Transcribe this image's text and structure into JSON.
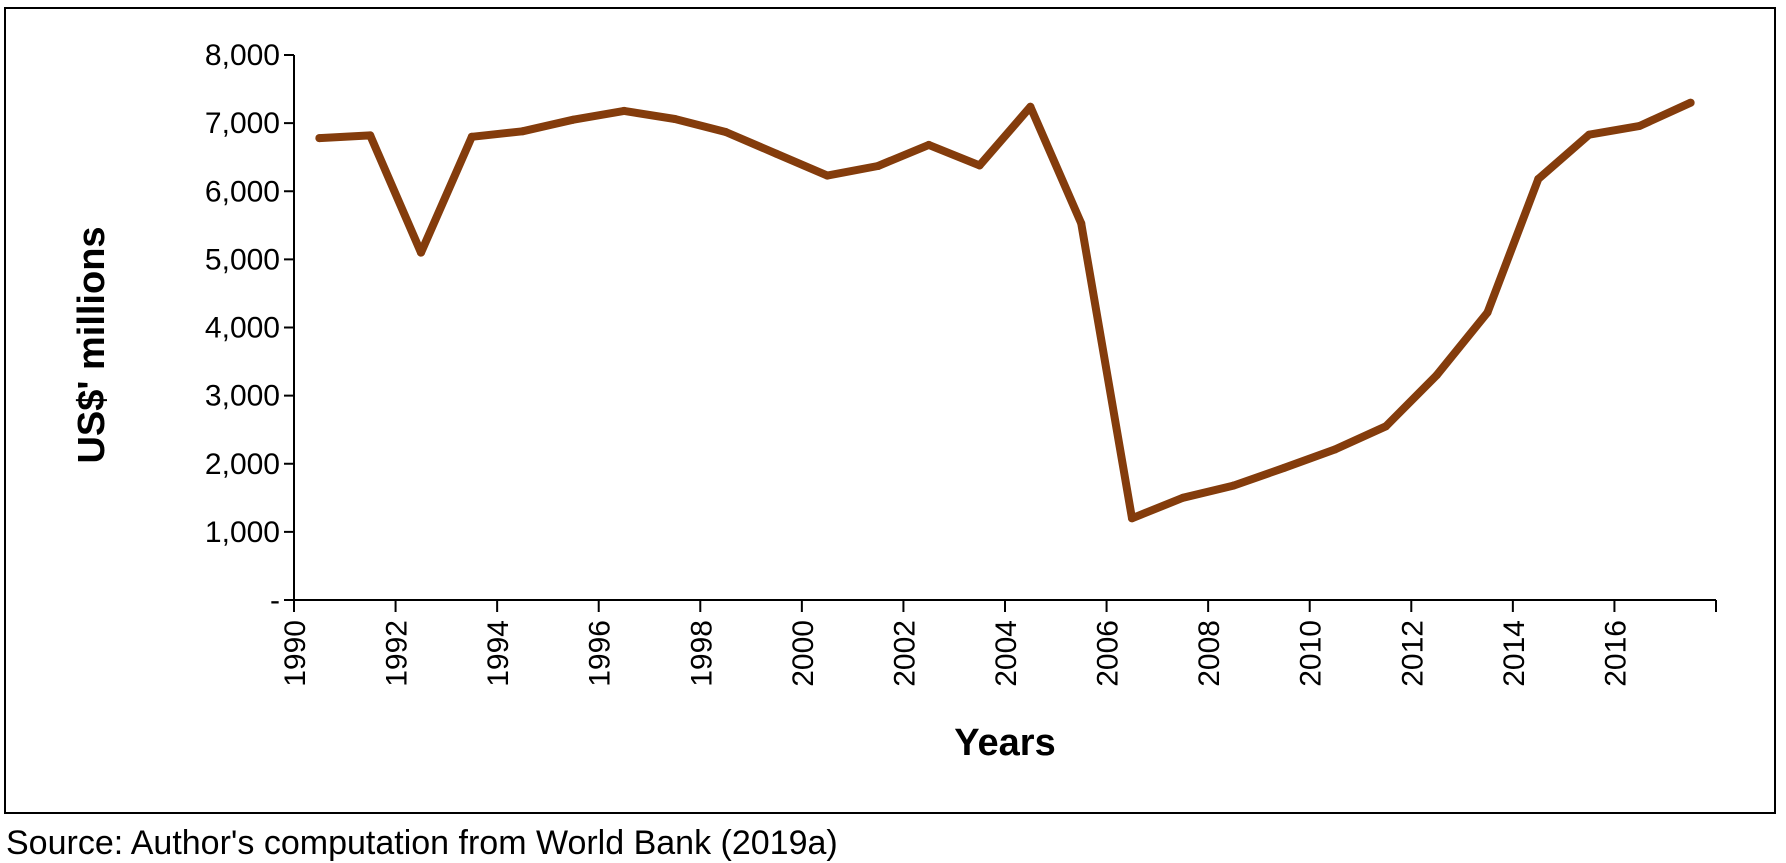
{
  "chart_data": {
    "type": "line",
    "title": "",
    "xlabel": "Years",
    "ylabel": "US$' millions",
    "ylim": [
      0,
      8000
    ],
    "y_ticks": [
      {
        "value": 0,
        "label": "-"
      },
      {
        "value": 1000,
        "label": "1,000"
      },
      {
        "value": 2000,
        "label": "2,000"
      },
      {
        "value": 3000,
        "label": "3,000"
      },
      {
        "value": 4000,
        "label": "4,000"
      },
      {
        "value": 5000,
        "label": "5,000"
      },
      {
        "value": 6000,
        "label": "6,000"
      },
      {
        "value": 7000,
        "label": "7,000"
      },
      {
        "value": 8000,
        "label": "8,000"
      }
    ],
    "x_tick_labels": [
      "1990",
      "1992",
      "1994",
      "1996",
      "1998",
      "2000",
      "2002",
      "2004",
      "2006",
      "2008",
      "2010",
      "2012",
      "2014",
      "2016"
    ],
    "x": [
      1990,
      1991,
      1992,
      1993,
      1994,
      1995,
      1996,
      1997,
      1998,
      1999,
      2000,
      2001,
      2002,
      2003,
      2004,
      2005,
      2006,
      2007,
      2008,
      2009,
      2010,
      2011,
      2012,
      2013,
      2014,
      2015,
      2016,
      2017
    ],
    "series": [
      {
        "color": "#843c0c",
        "values": [
          6780,
          6820,
          5100,
          6800,
          6880,
          7050,
          7180,
          7060,
          6870,
          6550,
          6230,
          6370,
          6680,
          6380,
          7240,
          5530,
          1200,
          1500,
          1680,
          1940,
          2210,
          2550,
          3300,
          4220,
          6180,
          6830,
          6960,
          7300
        ]
      }
    ],
    "grid": false,
    "legend": "none"
  },
  "source": {
    "text": "Source: Author's computation from World Bank (2019a)"
  }
}
